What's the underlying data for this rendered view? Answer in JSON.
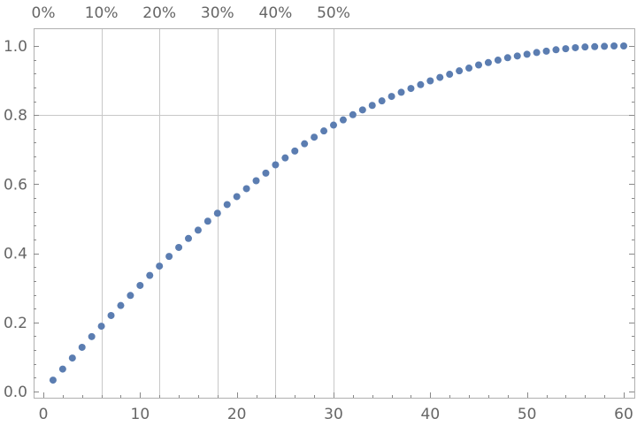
{
  "chart_data": {
    "type": "scatter",
    "title": "",
    "xlabel": "",
    "ylabel": "",
    "xlim": [
      0,
      60
    ],
    "ylim": [
      0,
      1
    ],
    "x_ticks": [
      0,
      10,
      20,
      30,
      40,
      50,
      60
    ],
    "x_tick_labels": [
      "0",
      "10",
      "20",
      "30",
      "40",
      "50",
      "60"
    ],
    "y_ticks": [
      0,
      0.2,
      0.4,
      0.6,
      0.8,
      1.0
    ],
    "y_tick_labels": [
      "0.0",
      "0.2",
      "0.4",
      "0.6",
      "0.8",
      "1.0"
    ],
    "top_axis": {
      "ticks": [
        0,
        6,
        12,
        18,
        24,
        30
      ],
      "labels": [
        "0%",
        "10%",
        "20%",
        "30%",
        "40%",
        "50%"
      ]
    },
    "gridlines_x": [
      6,
      12,
      18,
      24,
      30
    ],
    "gridlines_y": [
      0.8
    ],
    "point_color": "#5b7db1",
    "series": [
      {
        "x": [
          1,
          2,
          3,
          4,
          5,
          6,
          7,
          8,
          9,
          10,
          11,
          12,
          13,
          14,
          15,
          16,
          17,
          18,
          19,
          20,
          21,
          22,
          23,
          24,
          25,
          26,
          27,
          28,
          29,
          30,
          31,
          32,
          33,
          34,
          35,
          36,
          37,
          38,
          39,
          40,
          41,
          42,
          43,
          44,
          45,
          46,
          47,
          48,
          49,
          50,
          51,
          52,
          53,
          54,
          55,
          56,
          57,
          58,
          59,
          60
        ],
        "y": [
          0.033,
          0.065,
          0.097,
          0.128,
          0.159,
          0.189,
          0.22,
          0.249,
          0.278,
          0.307,
          0.336,
          0.363,
          0.391,
          0.417,
          0.443,
          0.467,
          0.493,
          0.516,
          0.541,
          0.564,
          0.587,
          0.61,
          0.632,
          0.656,
          0.676,
          0.696,
          0.717,
          0.736,
          0.754,
          0.771,
          0.786,
          0.801,
          0.815,
          0.828,
          0.841,
          0.854,
          0.866,
          0.877,
          0.888,
          0.899,
          0.909,
          0.918,
          0.928,
          0.936,
          0.945,
          0.952,
          0.959,
          0.966,
          0.971,
          0.976,
          0.981,
          0.985,
          0.989,
          0.992,
          0.995,
          0.997,
          0.998,
          0.999,
          1.0,
          1.0
        ]
      }
    ]
  }
}
